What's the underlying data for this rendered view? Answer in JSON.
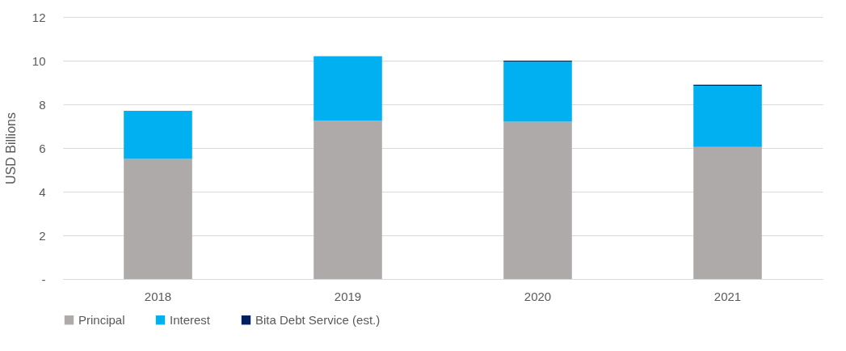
{
  "chart_data": {
    "type": "bar",
    "stacked": true,
    "ylabel": "USD Billions",
    "categories": [
      "2018",
      "2019",
      "2020",
      "2021"
    ],
    "series": [
      {
        "name": "Principal",
        "color": "#aeaaaa",
        "values": [
          5.5,
          7.25,
          7.2,
          6.05
        ]
      },
      {
        "name": "Interest",
        "color": "#00b0f0",
        "values": [
          2.2,
          2.95,
          2.75,
          2.8
        ]
      },
      {
        "name": "Bita Debt Service (est.)",
        "color": "#002060",
        "values": [
          null,
          null,
          0.05,
          0.05
        ]
      }
    ],
    "ylim": [
      0,
      12
    ],
    "yticks": [
      {
        "value": 0,
        "label": "-"
      },
      2,
      4,
      6,
      8,
      10,
      12
    ],
    "grid": "y",
    "legend": "bottom"
  }
}
